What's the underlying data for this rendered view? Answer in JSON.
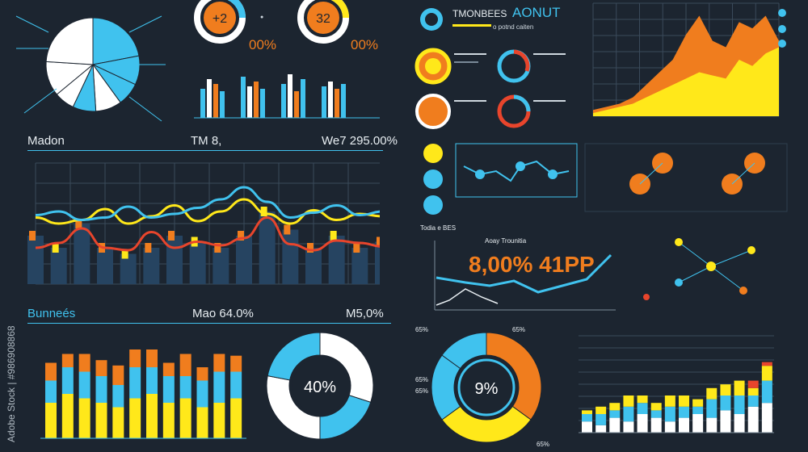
{
  "colors": {
    "bg": "#1c2530",
    "blue": "#40c2ee",
    "orange": "#f07d1e",
    "yellow": "#ffe81a",
    "red": "#e8452c",
    "white": "#ffffff",
    "navy": "#264461",
    "grid": "#3a4a5a"
  },
  "left": {
    "ring1": "+2",
    "ring2": "32",
    "ring_pct": "00%",
    "row1": {
      "label": "Madon",
      "mid": "TM 8,",
      "value": "We7 295.00%"
    },
    "row2": {
      "label": "Bunnеés",
      "mid": "Mao 64.0%",
      "value": "M5,0%"
    },
    "donut_center": "40%"
  },
  "right": {
    "title": "AONUT",
    "title_prefix": "TMONBEES",
    "title_sub": "o potnd caiten",
    "small_title": "Todia e BES",
    "small_sub": "Aoay Trounitia",
    "big_value": "8,00% 41PP",
    "donut_center": "9%",
    "donut_labels": [
      "65%",
      "65%",
      "65%",
      "65%",
      "65%"
    ]
  },
  "watermark": "Adobe Stock | #986908868",
  "chart_data": [
    {
      "type": "pie",
      "title": "",
      "values": [
        22,
        10,
        8,
        9,
        8,
        7,
        12,
        24
      ],
      "colors": [
        "#40c2ee",
        "#40c2ee",
        "#40c2ee",
        "#ffffff",
        "#40c2ee",
        "#ffffff",
        "#ffffff",
        "#ffffff"
      ]
    },
    {
      "type": "bar",
      "title": "",
      "series": [
        {
          "name": "",
          "values": [
            60,
            80,
            70,
            55,
            85,
            65,
            75,
            60,
            70,
            90,
            55,
            80,
            65,
            75,
            60,
            70
          ]
        }
      ]
    },
    {
      "type": "line",
      "title": "",
      "ylim": [
        0,
        10
      ],
      "series": [
        {
          "name": "",
          "color": "#ffe81a",
          "values": [
            5.5,
            5.0,
            5.3,
            6.2,
            5.0,
            5.6,
            6.5,
            5.2,
            6.0,
            7.0,
            5.8,
            5.0,
            6.1,
            5.3,
            5.8,
            5.6
          ]
        },
        {
          "name": "",
          "color": "#40c2ee",
          "values": [
            5.7,
            6.0,
            5.3,
            5.5,
            6.4,
            5.5,
            5.8,
            6.3,
            7.0,
            8.0,
            6.8,
            5.5,
            5.9,
            6.5,
            5.7,
            6.0
          ]
        },
        {
          "name": "",
          "color": "#e8452c",
          "values": [
            3.0,
            3.4,
            4.6,
            3.0,
            2.8,
            4.3,
            3.0,
            3.5,
            3.2,
            3.8,
            5.5,
            3.3,
            2.8,
            3.6,
            3.4,
            3.1
          ]
        }
      ],
      "bars": [
        4,
        3,
        5,
        3,
        2.5,
        3,
        4,
        3.5,
        3,
        4,
        6,
        4.5,
        3,
        4,
        3,
        3.5
      ]
    },
    {
      "type": "bar",
      "title": "",
      "stacked": true,
      "series": [
        {
          "name": "",
          "color": "#ffe81a",
          "values": [
            40,
            50,
            45,
            40,
            35,
            45,
            50,
            40,
            45,
            35,
            40,
            45
          ]
        },
        {
          "name": "",
          "color": "#40c2ee",
          "values": [
            25,
            30,
            30,
            30,
            25,
            35,
            30,
            30,
            25,
            30,
            35,
            30
          ]
        },
        {
          "name": "",
          "color": "#f07d1e",
          "values": [
            20,
            15,
            20,
            18,
            22,
            20,
            20,
            15,
            25,
            15,
            20,
            18
          ]
        }
      ]
    },
    {
      "type": "pie",
      "title": "",
      "values": [
        30,
        20,
        28,
        22
      ],
      "colors": [
        "#ffffff",
        "#40c2ee",
        "#ffffff",
        "#40c2ee"
      ]
    },
    {
      "type": "area",
      "title": "",
      "series": [
        {
          "name": "",
          "color": "#f07d1e",
          "values": [
            1,
            1.5,
            2,
            3,
            5,
            7,
            9,
            13,
            16,
            12,
            11,
            15,
            14,
            16,
            12
          ]
        },
        {
          "name": "",
          "color": "#ffe81a",
          "values": [
            0.5,
            1,
            1.5,
            2,
            3,
            4,
            5,
            6,
            7,
            6.5,
            6,
            9,
            8,
            10,
            11
          ]
        }
      ]
    },
    {
      "type": "pie",
      "title": "",
      "values": [
        35,
        30,
        20,
        15
      ],
      "colors": [
        "#f07d1e",
        "#ffe81a",
        "#40c2ee",
        "#40c2ee"
      ]
    },
    {
      "type": "bar",
      "title": "",
      "stacked": true,
      "series": [
        {
          "name": "",
          "color": "#ffffff",
          "values": [
            3,
            2,
            4,
            3,
            5,
            4,
            3,
            4,
            5,
            4,
            6,
            5,
            7,
            8
          ]
        },
        {
          "name": "",
          "color": "#40c2ee",
          "values": [
            2,
            3,
            2,
            4,
            3,
            2,
            4,
            3,
            2,
            5,
            4,
            5,
            3,
            6
          ]
        },
        {
          "name": "",
          "color": "#ffe81a",
          "values": [
            1,
            2,
            2,
            3,
            2,
            2,
            3,
            3,
            2,
            3,
            3,
            4,
            2,
            4
          ]
        },
        {
          "name": "",
          "color": "#e8452c",
          "values": [
            0,
            0,
            0,
            0,
            0,
            0,
            0,
            0,
            0,
            0,
            0,
            0,
            2,
            1
          ]
        }
      ]
    }
  ]
}
